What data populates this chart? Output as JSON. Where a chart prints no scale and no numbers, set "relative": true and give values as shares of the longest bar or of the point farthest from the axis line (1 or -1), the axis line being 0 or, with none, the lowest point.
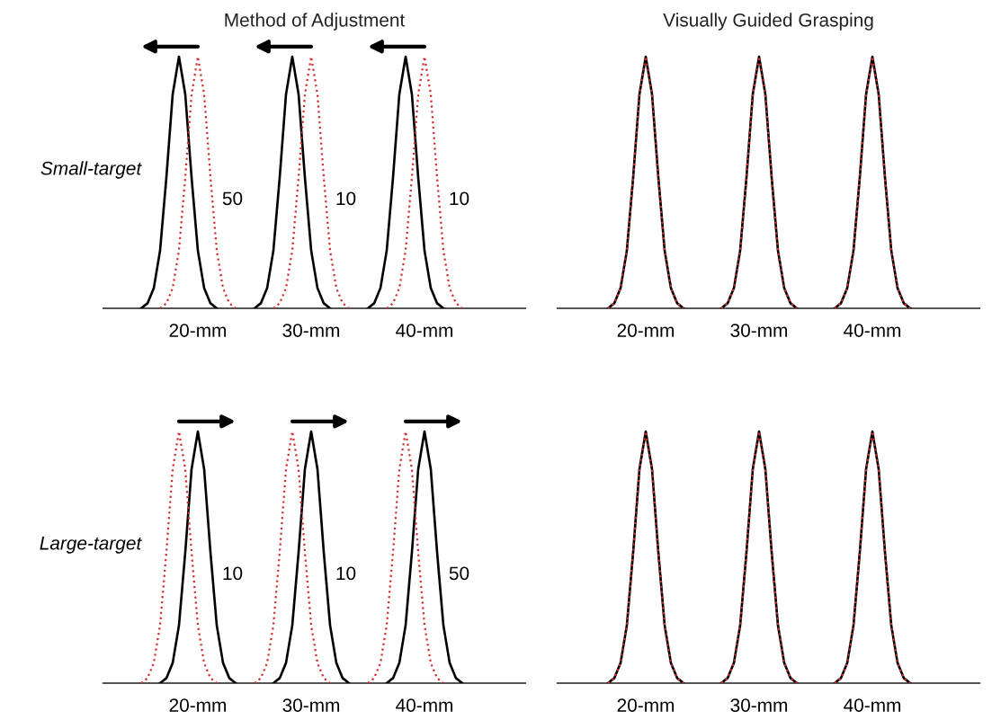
{
  "chart_data": [
    {
      "type": "line",
      "title": "Method of Adjustment",
      "ylabel": "Small-target",
      "relative": true,
      "categories": [
        null,
        null,
        null,
        null,
        null,
        null,
        null,
        null,
        null,
        null,
        null,
        null,
        null,
        null,
        null,
        "20-mm",
        null,
        null,
        null,
        null,
        null,
        null,
        null,
        null,
        null,
        null,
        null,
        null,
        null,
        null,
        null,
        null,
        null,
        "30-mm",
        null,
        null,
        null,
        null,
        null,
        null,
        null,
        null,
        null,
        null,
        null,
        null,
        null,
        null,
        null,
        null,
        null,
        "40-mm",
        null,
        null,
        null,
        null,
        null,
        null,
        null,
        null,
        null,
        null,
        null,
        null,
        null,
        null,
        null,
        null
      ],
      "series": [
        {
          "color": "#000000",
          "line_style": "solid",
          "values": [
            null,
            null,
            null,
            null,
            null,
            null,
            0,
            0.02,
            0.08,
            0.23,
            0.52,
            0.85,
            1,
            0.85,
            0.52,
            0.23,
            0.08,
            0.02,
            0,
            null,
            null,
            null,
            null,
            null,
            0,
            0.02,
            0.08,
            0.23,
            0.52,
            0.85,
            1,
            0.85,
            0.52,
            0.23,
            0.08,
            0.02,
            0,
            null,
            null,
            null,
            null,
            null,
            0,
            0.02,
            0.08,
            0.23,
            0.52,
            0.85,
            1,
            0.85,
            0.52,
            0.23,
            0.08,
            0.02,
            0,
            null,
            null,
            null,
            null,
            null,
            null,
            null,
            null,
            null,
            null,
            null,
            null,
            null
          ]
        },
        {
          "color": "#d03030",
          "line_style": "dotted",
          "values": [
            null,
            null,
            null,
            null,
            null,
            null,
            null,
            null,
            null,
            0,
            0.02,
            0.08,
            0.23,
            0.52,
            0.85,
            1,
            0.85,
            0.52,
            0.23,
            0.08,
            0.02,
            0,
            null,
            null,
            null,
            null,
            null,
            0,
            0.02,
            0.08,
            0.23,
            0.52,
            0.85,
            1,
            0.85,
            0.52,
            0.23,
            0.08,
            0.02,
            0,
            null,
            null,
            null,
            null,
            null,
            0,
            0.02,
            0.08,
            0.23,
            0.52,
            0.85,
            1,
            0.85,
            0.52,
            0.23,
            0.08,
            0.02,
            0,
            null,
            null,
            null,
            null,
            null,
            null,
            null,
            null,
            null,
            null
          ]
        }
      ],
      "annotations": [
        "50",
        "10",
        "10"
      ]
    },
    {
      "type": "line",
      "title": "Visually Guided Grasping",
      "relative": true,
      "categories": [
        null,
        null,
        null,
        null,
        null,
        null,
        null,
        null,
        null,
        null,
        null,
        null,
        null,
        null,
        "20-mm",
        null,
        null,
        null,
        null,
        null,
        null,
        null,
        null,
        null,
        null,
        null,
        null,
        null,
        null,
        null,
        null,
        null,
        "30-mm",
        null,
        null,
        null,
        null,
        null,
        null,
        null,
        null,
        null,
        null,
        null,
        null,
        null,
        null,
        null,
        null,
        null,
        "40-mm",
        null,
        null,
        null,
        null,
        null,
        null,
        null,
        null,
        null,
        null,
        null,
        null,
        null,
        null,
        null,
        null,
        null
      ],
      "series": [
        {
          "color": "#000000",
          "line_style": "solid",
          "values": [
            null,
            null,
            null,
            null,
            null,
            null,
            null,
            null,
            0,
            0.02,
            0.08,
            0.23,
            0.52,
            0.85,
            1,
            0.85,
            0.52,
            0.23,
            0.08,
            0.02,
            0,
            null,
            null,
            null,
            null,
            null,
            0,
            0.02,
            0.08,
            0.23,
            0.52,
            0.85,
            1,
            0.85,
            0.52,
            0.23,
            0.08,
            0.02,
            0,
            null,
            null,
            null,
            null,
            null,
            0,
            0.02,
            0.08,
            0.23,
            0.52,
            0.85,
            1,
            0.85,
            0.52,
            0.23,
            0.08,
            0.02,
            0,
            null,
            null,
            null,
            null,
            null,
            null,
            null,
            null,
            null,
            null,
            null
          ]
        },
        {
          "color": "#d03030",
          "line_style": "dotted",
          "values": [
            null,
            null,
            null,
            null,
            null,
            null,
            null,
            null,
            0,
            0.02,
            0.08,
            0.23,
            0.52,
            0.85,
            1,
            0.85,
            0.52,
            0.23,
            0.08,
            0.02,
            0,
            null,
            null,
            null,
            null,
            null,
            0,
            0.02,
            0.08,
            0.23,
            0.52,
            0.85,
            1,
            0.85,
            0.52,
            0.23,
            0.08,
            0.02,
            0,
            null,
            null,
            null,
            null,
            null,
            0,
            0.02,
            0.08,
            0.23,
            0.52,
            0.85,
            1,
            0.85,
            0.52,
            0.23,
            0.08,
            0.02,
            0,
            null,
            null,
            null,
            null,
            null,
            null,
            null,
            null,
            null,
            null,
            null
          ]
        }
      ]
    },
    {
      "type": "line",
      "ylabel": "Large-target",
      "relative": true,
      "categories": [
        null,
        null,
        null,
        null,
        null,
        null,
        null,
        null,
        null,
        null,
        null,
        null,
        null,
        null,
        null,
        "20-mm",
        null,
        null,
        null,
        null,
        null,
        null,
        null,
        null,
        null,
        null,
        null,
        null,
        null,
        null,
        null,
        null,
        null,
        "30-mm",
        null,
        null,
        null,
        null,
        null,
        null,
        null,
        null,
        null,
        null,
        null,
        null,
        null,
        null,
        null,
        null,
        null,
        "40-mm",
        null,
        null,
        null,
        null,
        null,
        null,
        null,
        null,
        null,
        null,
        null,
        null,
        null,
        null,
        null,
        null
      ],
      "series": [
        {
          "color": "#000000",
          "line_style": "solid",
          "values": [
            null,
            null,
            null,
            null,
            null,
            null,
            null,
            null,
            null,
            0,
            0.02,
            0.08,
            0.23,
            0.52,
            0.85,
            1,
            0.85,
            0.52,
            0.23,
            0.08,
            0.02,
            0,
            null,
            null,
            null,
            null,
            null,
            0,
            0.02,
            0.08,
            0.23,
            0.52,
            0.85,
            1,
            0.85,
            0.52,
            0.23,
            0.08,
            0.02,
            0,
            null,
            null,
            null,
            null,
            null,
            0,
            0.02,
            0.08,
            0.23,
            0.52,
            0.85,
            1,
            0.85,
            0.52,
            0.23,
            0.08,
            0.02,
            0,
            null,
            null,
            null,
            null,
            null,
            null,
            null,
            null,
            null,
            null
          ]
        },
        {
          "color": "#d03030",
          "line_style": "dotted",
          "values": [
            null,
            null,
            null,
            null,
            null,
            null,
            0,
            0.02,
            0.08,
            0.23,
            0.52,
            0.85,
            1,
            0.85,
            0.52,
            0.23,
            0.08,
            0.02,
            0,
            null,
            null,
            null,
            null,
            null,
            0,
            0.02,
            0.08,
            0.23,
            0.52,
            0.85,
            1,
            0.85,
            0.52,
            0.23,
            0.08,
            0.02,
            0,
            null,
            null,
            null,
            null,
            null,
            0,
            0.02,
            0.08,
            0.23,
            0.52,
            0.85,
            1,
            0.85,
            0.52,
            0.23,
            0.08,
            0.02,
            0,
            null,
            null,
            null,
            null,
            null,
            null,
            null,
            null,
            null,
            null,
            null,
            null,
            null
          ]
        }
      ],
      "annotations": [
        "10",
        "10",
        "50"
      ]
    },
    {
      "type": "line",
      "relative": true,
      "categories": [
        null,
        null,
        null,
        null,
        null,
        null,
        null,
        null,
        null,
        null,
        null,
        null,
        null,
        null,
        "20-mm",
        null,
        null,
        null,
        null,
        null,
        null,
        null,
        null,
        null,
        null,
        null,
        null,
        null,
        null,
        null,
        null,
        null,
        "30-mm",
        null,
        null,
        null,
        null,
        null,
        null,
        null,
        null,
        null,
        null,
        null,
        null,
        null,
        null,
        null,
        null,
        null,
        "40-mm",
        null,
        null,
        null,
        null,
        null,
        null,
        null,
        null,
        null,
        null,
        null,
        null,
        null,
        null,
        null,
        null,
        null
      ],
      "series": [
        {
          "color": "#000000",
          "line_style": "solid",
          "values": [
            null,
            null,
            null,
            null,
            null,
            null,
            null,
            null,
            0,
            0.02,
            0.08,
            0.23,
            0.52,
            0.85,
            1,
            0.85,
            0.52,
            0.23,
            0.08,
            0.02,
            0,
            null,
            null,
            null,
            null,
            null,
            0,
            0.02,
            0.08,
            0.23,
            0.52,
            0.85,
            1,
            0.85,
            0.52,
            0.23,
            0.08,
            0.02,
            0,
            null,
            null,
            null,
            null,
            null,
            0,
            0.02,
            0.08,
            0.23,
            0.52,
            0.85,
            1,
            0.85,
            0.52,
            0.23,
            0.08,
            0.02,
            0,
            null,
            null,
            null,
            null,
            null,
            null,
            null,
            null,
            null,
            null,
            null
          ]
        },
        {
          "color": "#d03030",
          "line_style": "dotted",
          "values": [
            null,
            null,
            null,
            null,
            null,
            null,
            null,
            null,
            0,
            0.02,
            0.08,
            0.23,
            0.52,
            0.85,
            1,
            0.85,
            0.52,
            0.23,
            0.08,
            0.02,
            0,
            null,
            null,
            null,
            null,
            null,
            0,
            0.02,
            0.08,
            0.23,
            0.52,
            0.85,
            1,
            0.85,
            0.52,
            0.23,
            0.08,
            0.02,
            0,
            null,
            null,
            null,
            null,
            null,
            0,
            0.02,
            0.08,
            0.23,
            0.52,
            0.85,
            1,
            0.85,
            0.52,
            0.23,
            0.08,
            0.02,
            0,
            null,
            null,
            null,
            null,
            null,
            null,
            null,
            null,
            null,
            null,
            null
          ]
        }
      ]
    }
  ]
}
